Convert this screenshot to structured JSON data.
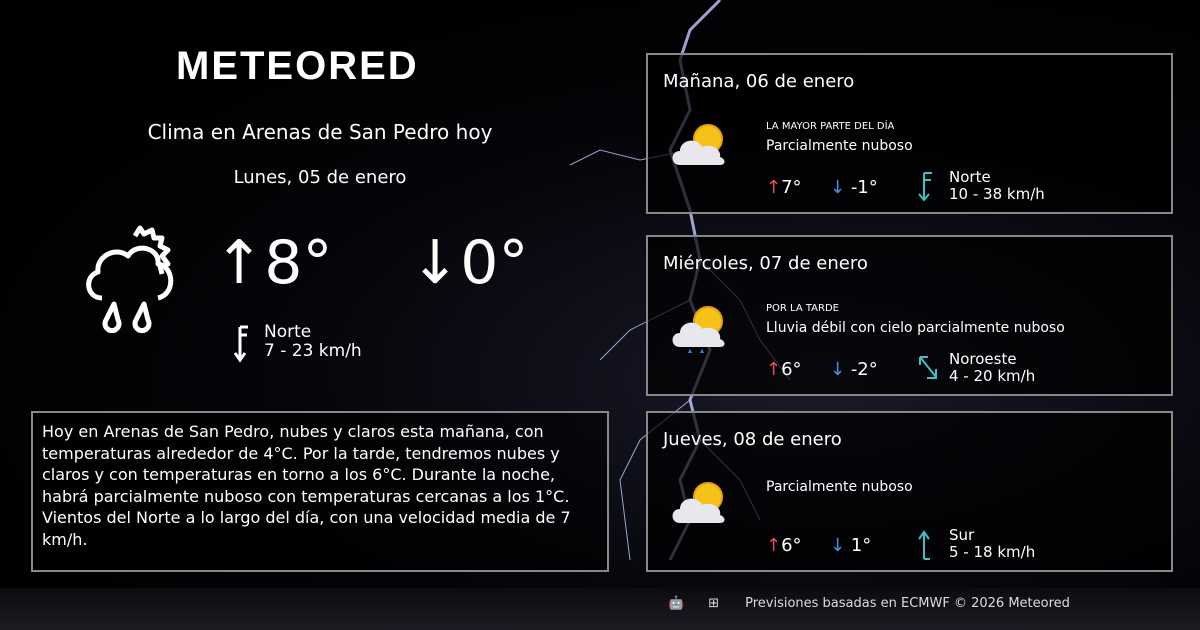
{
  "brand": "METEORED",
  "title": "Clima en Arenas de San Pedro hoy",
  "today": {
    "date": "Lunes, 05 de enero",
    "icon": "cloud-sun-rain-icon",
    "max": "↑8°",
    "min": "↓0°",
    "wind_dir": "Norte",
    "wind_speed": "7 - 23 km/h"
  },
  "summary": "Hoy en Arenas de San Pedro, nubes y claros esta mañana, con temperaturas alrededor de 4°C. Por la tarde, tendremos nubes y claros y con temperaturas en torno a los 6°C. Durante la noche, habrá parcialmente nuboso  con temperaturas cercanas a los 1°C. Vientos del Norte a lo largo del día, con una velocidad media de 7 km/h.",
  "forecast": [
    {
      "date": "Mañana, 06 de enero",
      "period": "LA MAYOR PARTE DEL DÍA",
      "desc": "Parcialmente nuboso",
      "max": "7°",
      "min": "-1°",
      "wind_dir": "Norte",
      "wind_speed": "10 - 38 km/h",
      "icon": "partly-cloudy-icon"
    },
    {
      "date": "Miércoles, 07 de enero",
      "period": "POR LA TARDE",
      "desc": "Lluvia débil con cielo parcialmente nuboso",
      "max": "6°",
      "min": "-2°",
      "wind_dir": "Noroeste",
      "wind_speed": "4 - 20 km/h",
      "icon": "light-rain-partly-cloudy-icon"
    },
    {
      "date": "Jueves, 08 de enero",
      "period": "",
      "desc": "Parcialmente nuboso",
      "max": "6°",
      "min": "1°",
      "wind_dir": "Sur",
      "wind_speed": "5 - 18 km/h",
      "icon": "partly-cloudy-icon"
    }
  ],
  "footer": "Previsiones basadas en ECMWF © 2026 Meteored",
  "colors": {
    "max": "#e35050",
    "min": "#4a90e0",
    "wind": "#3ec0c8"
  }
}
